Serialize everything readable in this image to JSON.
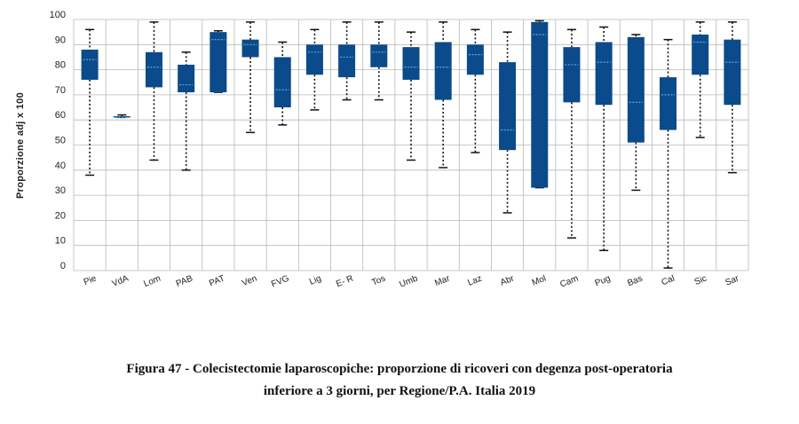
{
  "chart_data": {
    "type": "boxplot",
    "ylabel": "Proporzione adj x 100",
    "ylim": [
      0,
      100
    ],
    "yticks": [
      0,
      10,
      20,
      30,
      40,
      50,
      60,
      70,
      80,
      90,
      100
    ],
    "grid": true,
    "box_color": "#0b4a8b",
    "median_color": "#5fa8e0",
    "categories": [
      "Pie",
      "VdA",
      "Lom",
      "PAB",
      "PAT",
      "Ven",
      "FVG",
      "Lig",
      "E- R",
      "Tos",
      "Umb",
      "Mar",
      "Laz",
      "Abr",
      "Mol",
      "Cam",
      "Pug",
      "Bas",
      "Cal",
      "Sic",
      "Sar"
    ],
    "series": [
      {
        "values": [
          {
            "min": 38,
            "q1": 76,
            "median": 84,
            "q3": 88,
            "max": 96
          },
          {
            "min": 61,
            "q1": 61,
            "median": 61,
            "q3": 61.5,
            "max": 62
          },
          {
            "min": 44,
            "q1": 73,
            "median": 81,
            "q3": 87,
            "max": 99
          },
          {
            "min": 40,
            "q1": 71,
            "median": 74,
            "q3": 82,
            "max": 87
          },
          {
            "min": 71,
            "q1": 71,
            "median": 92,
            "q3": 95,
            "max": 95.5
          },
          {
            "min": 55,
            "q1": 85,
            "median": 90,
            "q3": 92,
            "max": 99
          },
          {
            "min": 58,
            "q1": 65,
            "median": 72,
            "q3": 85,
            "max": 91
          },
          {
            "min": 64,
            "q1": 78,
            "median": 87,
            "q3": 90,
            "max": 96
          },
          {
            "min": 68,
            "q1": 77,
            "median": 85,
            "q3": 90,
            "max": 99
          },
          {
            "min": 68,
            "q1": 81,
            "median": 87,
            "q3": 90,
            "max": 99
          },
          {
            "min": 44,
            "q1": 76,
            "median": 81,
            "q3": 89,
            "max": 95
          },
          {
            "min": 41,
            "q1": 68,
            "median": 81,
            "q3": 91,
            "max": 99
          },
          {
            "min": 47,
            "q1": 78,
            "median": 86,
            "q3": 90,
            "max": 96
          },
          {
            "min": 23,
            "q1": 48,
            "median": 56,
            "q3": 83,
            "max": 95
          },
          {
            "min": 33,
            "q1": 33,
            "median": 94,
            "q3": 99,
            "max": 99.5
          },
          {
            "min": 13,
            "q1": 67,
            "median": 82,
            "q3": 89,
            "max": 96
          },
          {
            "min": 8,
            "q1": 66,
            "median": 83,
            "q3": 91,
            "max": 97
          },
          {
            "min": 32,
            "q1": 51,
            "median": 67,
            "q3": 93,
            "max": 94
          },
          {
            "min": 1,
            "q1": 56,
            "median": 70,
            "q3": 77,
            "max": 92
          },
          {
            "min": 53,
            "q1": 78,
            "median": 91,
            "q3": 94,
            "max": 99
          },
          {
            "min": 39,
            "q1": 66,
            "median": 83,
            "q3": 92,
            "max": 99
          }
        ]
      }
    ]
  },
  "caption": {
    "line1": "Figura 47 - Colecistectomie laparoscopiche: proporzione di ricoveri con degenza post-operatoria",
    "line2": "inferiore a 3 giorni, per Regione/P.A. Italia 2019"
  }
}
